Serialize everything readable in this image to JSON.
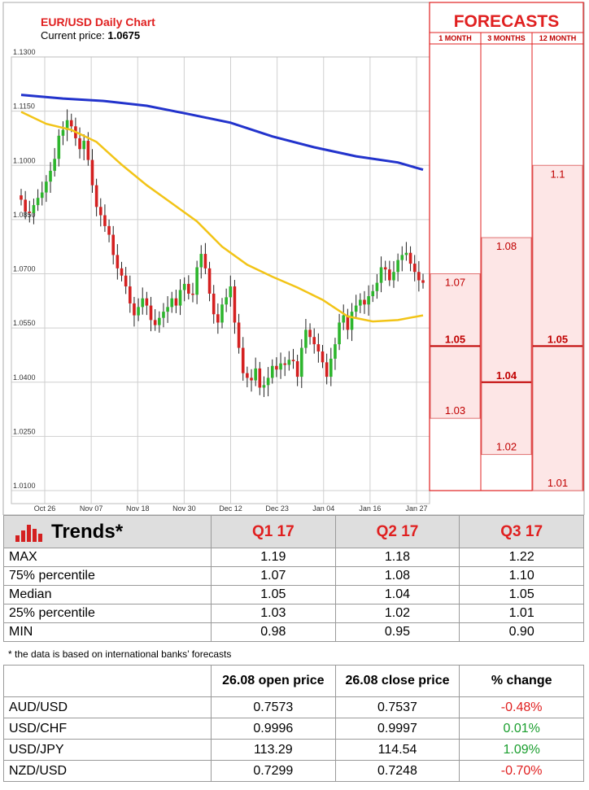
{
  "header": {
    "title": "EUR/USD Daily Chart",
    "price_label": "Current price:",
    "price_value": "1.0675"
  },
  "forecasts": {
    "title": "FORECASTS",
    "columns": [
      "1 MONTH",
      "3 MONTHS",
      "12 MONTH"
    ],
    "color": "#e02020",
    "bands": [
      {
        "top": 1.07,
        "mid": 1.05,
        "bottom": 1.03
      },
      {
        "top": 1.08,
        "mid": 1.04,
        "bottom": 1.02
      },
      {
        "top": 1.1,
        "mid": 1.05,
        "bottom": 1.01
      }
    ],
    "labels": [
      {
        "top": "1.07",
        "mid": "1.05",
        "bottom": "1.03"
      },
      {
        "top": "1.08",
        "mid": "1.04",
        "bottom": "1.02"
      },
      {
        "top": "1.1",
        "mid": "1.05",
        "bottom": "1.01"
      }
    ]
  },
  "chart_data": {
    "type": "candlestick",
    "ylim": [
      1.01,
      1.13
    ],
    "yticks": [
      "1.0100",
      "1.0250",
      "1.0400",
      "1.0550",
      "1.0700",
      "1.0850",
      "1.1000",
      "1.1150",
      "1.1300"
    ],
    "xticks": [
      "Oct 26",
      "Nov 07",
      "Nov 18",
      "Nov 30",
      "Dec 12",
      "Dec 23",
      "Jan 04",
      "Jan 16",
      "Jan 27"
    ],
    "up_color": "#2db52d",
    "down_color": "#d42020",
    "ma_colors": {
      "slow": "#2233cc",
      "fast": "#f2c417"
    },
    "closes": [
      1.0905,
      1.0872,
      1.0868,
      1.089,
      1.091,
      1.0925,
      1.0955,
      1.0985,
      1.1018,
      1.1082,
      1.1098,
      1.1125,
      1.1108,
      1.1075,
      1.1045,
      1.1068,
      1.1015,
      1.0945,
      1.0885,
      1.0862,
      1.0832,
      1.0808,
      1.0752,
      1.0715,
      1.0695,
      1.0665,
      1.0618,
      1.0585,
      1.0608,
      1.0632,
      1.0612,
      1.0572,
      1.0558,
      1.0578,
      1.0595,
      1.0608,
      1.0632,
      1.0612,
      1.0655,
      1.0672,
      1.0645,
      1.0642,
      1.0718,
      1.0755,
      1.0715,
      1.0645,
      1.0588,
      1.0565,
      1.0615,
      1.0635,
      1.0665,
      1.0565,
      1.0495,
      1.0425,
      1.0412,
      1.0405,
      1.0438,
      1.0385,
      1.0392,
      1.0412,
      1.0445,
      1.0435,
      1.0452,
      1.0448,
      1.0462,
      1.0458,
      1.0415,
      1.0495,
      1.0545,
      1.0525,
      1.0505,
      1.0485,
      1.0455,
      1.0415,
      1.0465,
      1.0505,
      1.0565,
      1.0585,
      1.0545,
      1.0595,
      1.0612,
      1.0628,
      1.0615,
      1.0638,
      1.0652,
      1.0675,
      1.0718,
      1.0712,
      1.0682,
      1.0705,
      1.0738,
      1.0752,
      1.0758,
      1.0728,
      1.0705,
      1.0682,
      1.0675
    ],
    "ma_slow": [
      [
        0,
        1.1195
      ],
      [
        10,
        1.1185
      ],
      [
        20,
        1.1178
      ],
      [
        30,
        1.1165
      ],
      [
        40,
        1.1142
      ],
      [
        50,
        1.1118
      ],
      [
        60,
        1.108
      ],
      [
        70,
        1.105
      ],
      [
        80,
        1.1025
      ],
      [
        90,
        1.1008
      ],
      [
        96,
        1.0988
      ]
    ],
    "ma_fast": [
      [
        0,
        1.1148
      ],
      [
        6,
        1.1115
      ],
      [
        12,
        1.1098
      ],
      [
        18,
        1.1065
      ],
      [
        24,
        1.1002
      ],
      [
        30,
        1.0945
      ],
      [
        36,
        1.0895
      ],
      [
        42,
        1.0845
      ],
      [
        48,
        1.0775
      ],
      [
        54,
        1.0725
      ],
      [
        60,
        1.0692
      ],
      [
        66,
        1.0662
      ],
      [
        72,
        1.0628
      ],
      [
        78,
        1.0582
      ],
      [
        84,
        1.0568
      ],
      [
        90,
        1.0572
      ],
      [
        96,
        1.0585
      ]
    ]
  },
  "trends": {
    "title": "Trends*",
    "columns": [
      "Q1 17",
      "Q2 17",
      "Q3 17"
    ],
    "rows": [
      {
        "label": "MAX",
        "values": [
          "1.19",
          "1.18",
          "1.22"
        ]
      },
      {
        "label": "75% percentile",
        "values": [
          "1.07",
          "1.08",
          "1.10"
        ]
      },
      {
        "label": "Median",
        "values": [
          "1.05",
          "1.04",
          "1.05"
        ]
      },
      {
        "label": "25% percentile",
        "values": [
          "1.03",
          "1.02",
          "1.01"
        ]
      },
      {
        "label": "MIN",
        "values": [
          "0.98",
          "0.95",
          "0.90"
        ]
      }
    ],
    "note": "* the data is based on international banks’ forecasts"
  },
  "fx": {
    "columns": [
      "26.08 open price",
      "26.08 close price",
      "% change"
    ],
    "rows": [
      {
        "pair": "AUD/USD",
        "open": "0.7573",
        "close": "0.7537",
        "change": "-0.48%"
      },
      {
        "pair": "USD/CHF",
        "open": "0.9996",
        "close": "0.9997",
        "change": "0.01%"
      },
      {
        "pair": "USD/JPY",
        "open": "113.29",
        "close": "114.54",
        "change": "1.09%"
      },
      {
        "pair": "NZD/USD",
        "open": "0.7299",
        "close": "0.7248",
        "change": "-0.70%"
      }
    ]
  }
}
